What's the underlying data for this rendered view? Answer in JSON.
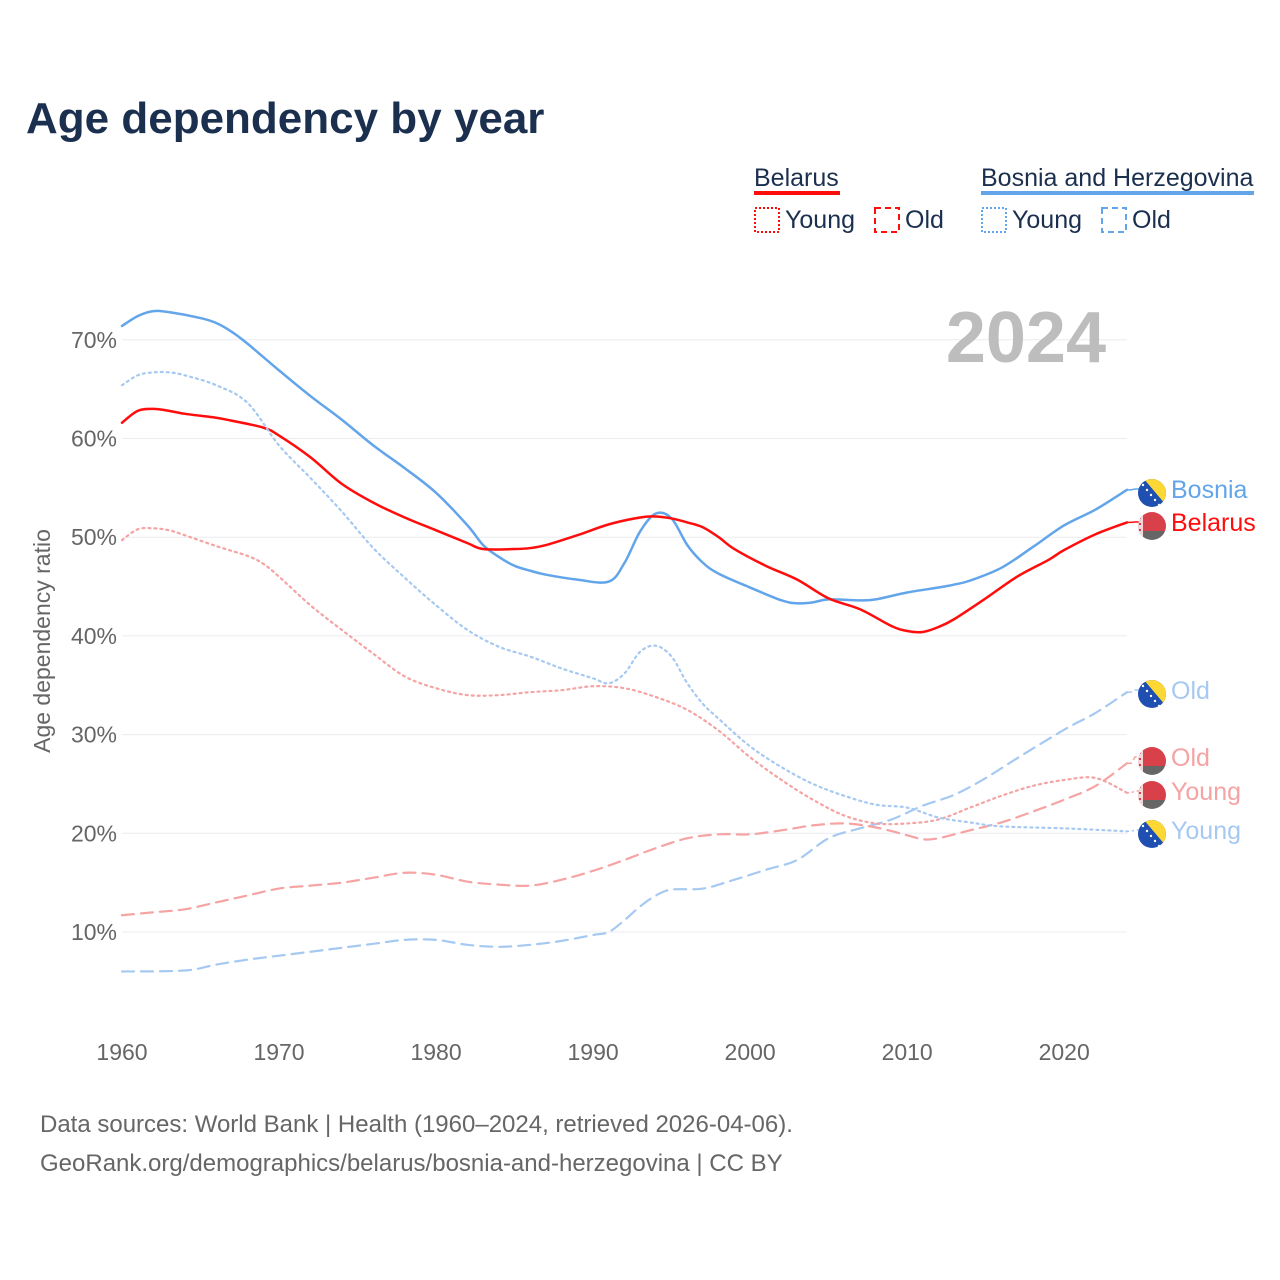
{
  "title": "Age dependency by year",
  "legend": {
    "groups": [
      {
        "name": "Belarus",
        "color": "#ff0d0d",
        "items": [
          "Young",
          "Old"
        ]
      },
      {
        "name": "Bosnia and Herzegovina",
        "color": "#62a5ea",
        "items": [
          "Young",
          "Old"
        ]
      }
    ]
  },
  "year_badge": "2024",
  "footer": {
    "line1": "Data sources: World Bank | Health (1960–2024, retrieved 2026-04-06).",
    "line2": "GeoRank.org/demographics/belarus/bosnia-and-herzegovina | CC BY"
  },
  "chart_data": {
    "type": "line",
    "title": "Age dependency by year",
    "xlabel": "",
    "ylabel": "Age dependency ratio",
    "xlim": [
      1960,
      2024
    ],
    "ylim": [
      0,
      75
    ],
    "x_ticks": [
      "1960",
      "1970",
      "1980",
      "1990",
      "2000",
      "2010",
      "2020"
    ],
    "y_ticks": [
      "10%",
      "20%",
      "30%",
      "40%",
      "50%",
      "60%",
      "70%"
    ],
    "y_tick_values": [
      10,
      20,
      30,
      40,
      50,
      60,
      70
    ],
    "x_tick_values": [
      1960,
      1970,
      1980,
      1990,
      2000,
      2010,
      2020
    ],
    "grid": true,
    "series": [
      {
        "name": "Bosnia",
        "country": "Bosnia and Herzegovina",
        "kind": "total",
        "end_label": "Bosnia",
        "color": "#62a5ea",
        "style": "solid",
        "points": [
          [
            1960,
            71.4
          ],
          [
            1961,
            72.4
          ],
          [
            1962,
            72.9
          ],
          [
            1963,
            72.8
          ],
          [
            1965,
            72.2
          ],
          [
            1966,
            71.7
          ],
          [
            1967,
            70.8
          ],
          [
            1968,
            69.6
          ],
          [
            1970,
            66.9
          ],
          [
            1972,
            64.3
          ],
          [
            1974,
            61.9
          ],
          [
            1976,
            59.3
          ],
          [
            1978,
            57.0
          ],
          [
            1980,
            54.5
          ],
          [
            1982,
            51.2
          ],
          [
            1983,
            49.2
          ],
          [
            1984,
            48.0
          ],
          [
            1985,
            47.1
          ],
          [
            1986,
            46.6
          ],
          [
            1987,
            46.2
          ],
          [
            1989,
            45.7
          ],
          [
            1991,
            45.5
          ],
          [
            1992,
            47.4
          ],
          [
            1993,
            50.6
          ],
          [
            1994,
            52.4
          ],
          [
            1995,
            51.9
          ],
          [
            1996,
            49.2
          ],
          [
            1997,
            47.4
          ],
          [
            1998,
            46.3
          ],
          [
            2000,
            44.9
          ],
          [
            2002,
            43.6
          ],
          [
            2003,
            43.3
          ],
          [
            2004,
            43.4
          ],
          [
            2005,
            43.7
          ],
          [
            2007,
            43.6
          ],
          [
            2008,
            43.7
          ],
          [
            2010,
            44.4
          ],
          [
            2012,
            44.9
          ],
          [
            2013,
            45.2
          ],
          [
            2014,
            45.6
          ],
          [
            2016,
            46.9
          ],
          [
            2018,
            49.0
          ],
          [
            2020,
            51.2
          ],
          [
            2022,
            52.8
          ],
          [
            2024,
            54.8
          ]
        ]
      },
      {
        "name": "Belarus",
        "country": "Belarus",
        "kind": "total",
        "end_label": "Belarus",
        "color": "#ff0d0d",
        "style": "solid",
        "points": [
          [
            1960,
            61.6
          ],
          [
            1961,
            62.8
          ],
          [
            1962,
            63.0
          ],
          [
            1963,
            62.8
          ],
          [
            1964,
            62.5
          ],
          [
            1966,
            62.1
          ],
          [
            1967,
            61.8
          ],
          [
            1969,
            61.1
          ],
          [
            1970,
            60.3
          ],
          [
            1972,
            58.1
          ],
          [
            1974,
            55.4
          ],
          [
            1976,
            53.5
          ],
          [
            1978,
            52.0
          ],
          [
            1980,
            50.7
          ],
          [
            1982,
            49.4
          ],
          [
            1983,
            48.8
          ],
          [
            1985,
            48.8
          ],
          [
            1986,
            48.9
          ],
          [
            1987,
            49.2
          ],
          [
            1989,
            50.2
          ],
          [
            1991,
            51.3
          ],
          [
            1993,
            52.0
          ],
          [
            1994,
            52.1
          ],
          [
            1995,
            51.9
          ],
          [
            1996,
            51.5
          ],
          [
            1997,
            51.0
          ],
          [
            1998,
            50.0
          ],
          [
            1999,
            48.8
          ],
          [
            2001,
            47.1
          ],
          [
            2003,
            45.7
          ],
          [
            2005,
            43.8
          ],
          [
            2007,
            42.7
          ],
          [
            2009,
            41.0
          ],
          [
            2010,
            40.5
          ],
          [
            2011,
            40.4
          ],
          [
            2012,
            40.9
          ],
          [
            2013,
            41.7
          ],
          [
            2015,
            43.8
          ],
          [
            2017,
            46.0
          ],
          [
            2019,
            47.7
          ],
          [
            2020,
            48.7
          ],
          [
            2022,
            50.3
          ],
          [
            2024,
            51.5
          ]
        ]
      },
      {
        "name": "Bosnia Old",
        "country": "Bosnia and Herzegovina",
        "kind": "old",
        "end_label": "Old",
        "color": "#a6c9f1",
        "style": "dashed",
        "points": [
          [
            1960,
            6.0
          ],
          [
            1964,
            6.1
          ],
          [
            1966,
            6.7
          ],
          [
            1968,
            7.2
          ],
          [
            1970,
            7.6
          ],
          [
            1972,
            8.0
          ],
          [
            1974,
            8.4
          ],
          [
            1976,
            8.8
          ],
          [
            1978,
            9.2
          ],
          [
            1980,
            9.2
          ],
          [
            1982,
            8.7
          ],
          [
            1984,
            8.5
          ],
          [
            1986,
            8.7
          ],
          [
            1988,
            9.1
          ],
          [
            1990,
            9.7
          ],
          [
            1991,
            10.0
          ],
          [
            1992,
            11.2
          ],
          [
            1993,
            12.6
          ],
          [
            1994,
            13.7
          ],
          [
            1995,
            14.3
          ],
          [
            1997,
            14.4
          ],
          [
            1999,
            15.3
          ],
          [
            2001,
            16.3
          ],
          [
            2003,
            17.3
          ],
          [
            2005,
            19.5
          ],
          [
            2007,
            20.5
          ],
          [
            2009,
            21.4
          ],
          [
            2011,
            22.8
          ],
          [
            2013,
            23.9
          ],
          [
            2015,
            25.6
          ],
          [
            2017,
            27.6
          ],
          [
            2020,
            30.5
          ],
          [
            2022,
            32.2
          ],
          [
            2024,
            34.3
          ]
        ]
      },
      {
        "name": "Belarus Old",
        "country": "Belarus",
        "kind": "old",
        "end_label": "Old",
        "color": "#f5a3a3",
        "style": "dashed",
        "points": [
          [
            1960,
            11.7
          ],
          [
            1962,
            12.0
          ],
          [
            1964,
            12.3
          ],
          [
            1966,
            13.0
          ],
          [
            1968,
            13.7
          ],
          [
            1970,
            14.4
          ],
          [
            1972,
            14.7
          ],
          [
            1974,
            15.0
          ],
          [
            1976,
            15.5
          ],
          [
            1978,
            16.0
          ],
          [
            1980,
            15.8
          ],
          [
            1982,
            15.1
          ],
          [
            1984,
            14.8
          ],
          [
            1986,
            14.7
          ],
          [
            1988,
            15.3
          ],
          [
            1990,
            16.2
          ],
          [
            1992,
            17.3
          ],
          [
            1994,
            18.5
          ],
          [
            1996,
            19.5
          ],
          [
            1998,
            19.9
          ],
          [
            2000,
            19.9
          ],
          [
            2002,
            20.3
          ],
          [
            2004,
            20.8
          ],
          [
            2006,
            21.0
          ],
          [
            2008,
            20.6
          ],
          [
            2010,
            19.8
          ],
          [
            2011,
            19.4
          ],
          [
            2012,
            19.5
          ],
          [
            2014,
            20.3
          ],
          [
            2016,
            21.1
          ],
          [
            2018,
            22.2
          ],
          [
            2020,
            23.4
          ],
          [
            2022,
            24.8
          ],
          [
            2024,
            27.1
          ]
        ]
      },
      {
        "name": "Belarus Young",
        "country": "Belarus",
        "kind": "young",
        "end_label": "Young",
        "color": "#f5a3a3",
        "style": "dotted",
        "points": [
          [
            1960,
            49.7
          ],
          [
            1961,
            50.8
          ],
          [
            1962,
            50.9
          ],
          [
            1963,
            50.7
          ],
          [
            1964,
            50.2
          ],
          [
            1966,
            49.1
          ],
          [
            1968,
            48.1
          ],
          [
            1969,
            47.3
          ],
          [
            1970,
            46.0
          ],
          [
            1972,
            43.1
          ],
          [
            1974,
            40.6
          ],
          [
            1976,
            38.2
          ],
          [
            1978,
            35.9
          ],
          [
            1980,
            34.7
          ],
          [
            1982,
            34.0
          ],
          [
            1984,
            34.0
          ],
          [
            1986,
            34.3
          ],
          [
            1988,
            34.5
          ],
          [
            1990,
            34.9
          ],
          [
            1992,
            34.7
          ],
          [
            1994,
            33.8
          ],
          [
            1996,
            32.5
          ],
          [
            1998,
            30.4
          ],
          [
            2000,
            27.7
          ],
          [
            2002,
            25.4
          ],
          [
            2004,
            23.4
          ],
          [
            2006,
            21.8
          ],
          [
            2008,
            21.0
          ],
          [
            2010,
            21.0
          ],
          [
            2012,
            21.4
          ],
          [
            2014,
            22.6
          ],
          [
            2016,
            23.8
          ],
          [
            2018,
            24.8
          ],
          [
            2020,
            25.4
          ],
          [
            2022,
            25.6
          ],
          [
            2024,
            24.1
          ]
        ]
      },
      {
        "name": "Bosnia Young",
        "country": "Bosnia and Herzegovina",
        "kind": "young",
        "end_label": "Young",
        "color": "#a6c9f1",
        "style": "dotted",
        "points": [
          [
            1960,
            65.4
          ],
          [
            1961,
            66.4
          ],
          [
            1962,
            66.7
          ],
          [
            1963,
            66.7
          ],
          [
            1964,
            66.4
          ],
          [
            1966,
            65.4
          ],
          [
            1968,
            63.6
          ],
          [
            1970,
            59.3
          ],
          [
            1972,
            56.0
          ],
          [
            1974,
            52.6
          ],
          [
            1976,
            48.9
          ],
          [
            1978,
            45.9
          ],
          [
            1980,
            43.1
          ],
          [
            1982,
            40.6
          ],
          [
            1984,
            38.9
          ],
          [
            1986,
            37.9
          ],
          [
            1988,
            36.7
          ],
          [
            1990,
            35.7
          ],
          [
            1991,
            35.2
          ],
          [
            1992,
            36.2
          ],
          [
            1993,
            38.4
          ],
          [
            1994,
            39.0
          ],
          [
            1995,
            37.9
          ],
          [
            1996,
            35.2
          ],
          [
            1997,
            33.1
          ],
          [
            1998,
            31.6
          ],
          [
            2000,
            28.8
          ],
          [
            2002,
            26.7
          ],
          [
            2004,
            25.0
          ],
          [
            2006,
            23.8
          ],
          [
            2008,
            22.9
          ],
          [
            2010,
            22.6
          ],
          [
            2012,
            21.6
          ],
          [
            2014,
            21.1
          ],
          [
            2016,
            20.7
          ],
          [
            2020,
            20.5
          ],
          [
            2024,
            20.2
          ]
        ]
      }
    ]
  }
}
